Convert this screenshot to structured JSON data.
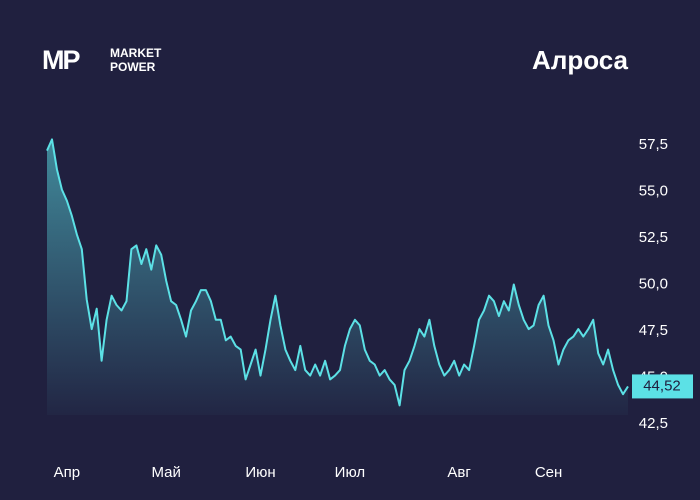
{
  "logo": {
    "mark": "MP",
    "text_lines": [
      "MARKET",
      "POWER"
    ]
  },
  "chart_data": {
    "type": "area",
    "title": "Алроса",
    "series": [
      {
        "color": "#5ce1e6",
        "values": [
          57.2,
          57.8,
          56.2,
          55.1,
          54.5,
          53.7,
          52.7,
          51.9,
          49.2,
          47.6,
          48.7,
          45.9,
          48.1,
          49.4,
          48.9,
          48.6,
          49.1,
          51.9,
          52.1,
          51.1,
          51.9,
          50.8,
          52.1,
          51.6,
          50.2,
          49.1,
          48.9,
          48.1,
          47.2,
          48.6,
          49.1,
          49.7,
          49.7,
          49.1,
          48.1,
          48.1,
          47.0,
          47.2,
          46.7,
          46.5,
          44.9,
          45.7,
          46.5,
          45.1,
          46.5,
          48.1,
          49.4,
          47.8,
          46.5,
          45.9,
          45.4,
          46.7,
          45.4,
          45.1,
          45.7,
          45.1,
          45.9,
          44.9,
          45.1,
          45.4,
          46.7,
          47.6,
          48.1,
          47.8,
          46.5,
          45.9,
          45.7,
          45.1,
          45.4,
          44.9,
          44.6,
          43.5,
          45.4,
          45.9,
          46.7,
          47.6,
          47.2,
          48.1,
          46.7,
          45.7,
          45.1,
          45.4,
          45.9,
          45.1,
          45.7,
          45.4,
          46.7,
          48.1,
          48.6,
          49.4,
          49.1,
          48.3,
          49.1,
          48.6,
          50.0,
          48.9,
          48.1,
          47.6,
          47.8,
          48.9,
          49.4,
          47.8,
          47.0,
          45.7,
          46.5,
          47.0,
          47.2,
          47.6,
          47.2,
          47.6,
          48.1,
          46.3,
          45.7,
          46.5,
          45.4,
          44.6,
          44.1,
          44.52
        ]
      }
    ],
    "last_price": {
      "value": 44.52,
      "label": "44,52"
    },
    "xlim": [
      0,
      117
    ],
    "xticks": [
      {
        "value": 4,
        "label": "Апр"
      },
      {
        "value": 24,
        "label": "Май"
      },
      {
        "value": 43,
        "label": "Июн"
      },
      {
        "value": 61,
        "label": "Июл"
      },
      {
        "value": 83,
        "label": "Авг"
      },
      {
        "value": 101,
        "label": "Сен"
      }
    ],
    "ylim": [
      42.5,
      58
    ],
    "yticks": [
      {
        "value": 42.5,
        "label": "42,5"
      },
      {
        "value": 45,
        "label": "45,0"
      },
      {
        "value": 47.5,
        "label": "47,5"
      },
      {
        "value": 50,
        "label": "50,0"
      },
      {
        "value": 52.5,
        "label": "52,5"
      },
      {
        "value": 55,
        "label": "55,0"
      },
      {
        "value": 57.5,
        "label": "57,5"
      }
    ]
  }
}
